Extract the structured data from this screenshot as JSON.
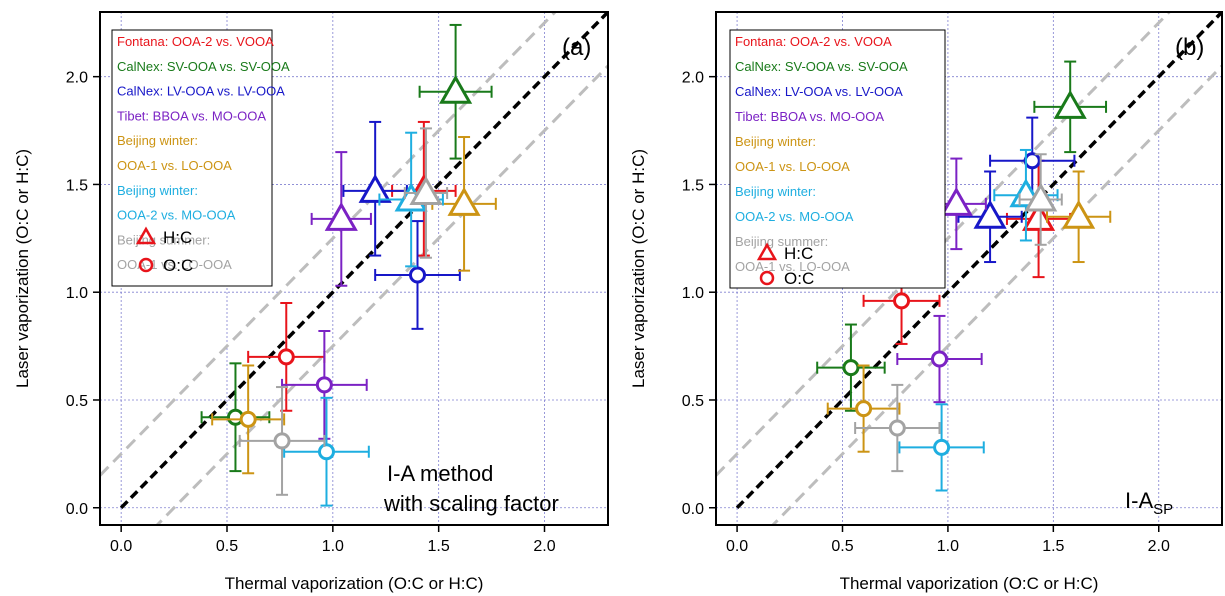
{
  "colors": {
    "Fontana": "#e8141b",
    "CalNex_SV": "#197a1a",
    "CalNex_LV": "#1717c8",
    "Tibet": "#7b22c4",
    "Beijing_winter_1": "#cc9414",
    "Beijing_winter_2": "#1eaee0",
    "Beijing_summer": "#a3a3a3",
    "one_to_one": "#000000",
    "guide": "#bdbdbd",
    "grid": "#8080d0"
  },
  "legend": {
    "entries": [
      {
        "key": "Fontana",
        "label": "Fontana: OOA-2 vs. VOOA"
      },
      {
        "key": "CalNex_SV",
        "label": "CalNex: SV-OOA vs. SV-OOA"
      },
      {
        "key": "CalNex_LV",
        "label": "CalNex: LV-OOA vs. LV-OOA"
      },
      {
        "key": "Tibet",
        "label": "Tibet: BBOA vs. MO-OOA"
      },
      {
        "key": "Beijing_winter_1",
        "label": "Beijing winter:"
      },
      {
        "key": "Beijing_winter_1",
        "label": "OOA-1 vs. LO-OOA"
      },
      {
        "key": "Beijing_winter_2",
        "label": "Beijing winter:"
      },
      {
        "key": "Beijing_winter_2",
        "label": "OOA-2 vs. MO-OOA"
      },
      {
        "key": "Beijing_summer",
        "label": "Beijing summer:"
      },
      {
        "key": "Beijing_summer",
        "label": "OOA-1 vs. LO-OOA"
      }
    ],
    "hc_label": "H:C",
    "oc_label": "O:C"
  },
  "chart_data": [
    {
      "type": "scatter",
      "panel_label": "(a)",
      "method_label_lines": [
        "I-A method",
        "with scaling factor"
      ],
      "xlabel": "Thermal vaporization (O:C or H:C)",
      "ylabel": "Laser vaporization (O:C or H:C)",
      "xlim": [
        -0.1,
        2.3
      ],
      "ylim": [
        -0.08,
        2.3
      ],
      "xticks": [
        "0.0",
        "0.5",
        "1.0",
        "1.5",
        "2.0"
      ],
      "yticks": [
        "0.0",
        "0.5",
        "1.0",
        "1.5",
        "2.0"
      ],
      "grid": true,
      "legend_position": "top-left",
      "reference_lines": [
        "1:1",
        "y = x + 0.25",
        "y = x - 0.25"
      ],
      "series": [
        {
          "key": "Fontana",
          "marker": "triangle",
          "x": 1.43,
          "y": 1.47,
          "xerr": [
            0.15,
            0.15
          ],
          "yerr": [
            0.3,
            0.32
          ]
        },
        {
          "key": "Fontana",
          "marker": "circle",
          "x": 0.78,
          "y": 0.7,
          "xerr": [
            0.18,
            0.18
          ],
          "yerr": [
            0.25,
            0.25
          ]
        },
        {
          "key": "CalNex_SV",
          "marker": "triangle",
          "x": 1.58,
          "y": 1.93,
          "xerr": [
            0.17,
            0.17
          ],
          "yerr": [
            0.31,
            0.31
          ]
        },
        {
          "key": "CalNex_SV",
          "marker": "circle",
          "x": 0.54,
          "y": 0.42,
          "xerr": [
            0.16,
            0.16
          ],
          "yerr": [
            0.25,
            0.25
          ]
        },
        {
          "key": "CalNex_LV",
          "marker": "triangle",
          "x": 1.2,
          "y": 1.47,
          "xerr": [
            0.15,
            0.15
          ],
          "yerr": [
            0.3,
            0.32
          ]
        },
        {
          "key": "CalNex_LV",
          "marker": "circle",
          "x": 1.4,
          "y": 1.08,
          "xerr": [
            0.2,
            0.2
          ],
          "yerr": [
            0.25,
            0.25
          ]
        },
        {
          "key": "Tibet",
          "marker": "triangle",
          "x": 1.04,
          "y": 1.34,
          "xerr": [
            0.14,
            0.14
          ],
          "yerr": [
            0.31,
            0.31
          ]
        },
        {
          "key": "Tibet",
          "marker": "circle",
          "x": 0.96,
          "y": 0.57,
          "xerr": [
            0.2,
            0.2
          ],
          "yerr": [
            0.25,
            0.25
          ]
        },
        {
          "key": "Beijing_winter_1",
          "marker": "triangle",
          "x": 1.62,
          "y": 1.41,
          "xerr": [
            0.15,
            0.15
          ],
          "yerr": [
            0.31,
            0.31
          ]
        },
        {
          "key": "Beijing_winter_1",
          "marker": "circle",
          "x": 0.6,
          "y": 0.41,
          "xerr": [
            0.17,
            0.17
          ],
          "yerr": [
            0.25,
            0.25
          ]
        },
        {
          "key": "Beijing_winter_2",
          "marker": "triangle",
          "x": 1.37,
          "y": 1.43,
          "xerr": [
            0.15,
            0.15
          ],
          "yerr": [
            0.31,
            0.31
          ]
        },
        {
          "key": "Beijing_winter_2",
          "marker": "circle",
          "x": 0.97,
          "y": 0.26,
          "xerr": [
            0.2,
            0.2
          ],
          "yerr": [
            0.25,
            0.25
          ]
        },
        {
          "key": "Beijing_summer",
          "marker": "triangle",
          "x": 1.44,
          "y": 1.46,
          "xerr": [
            0.1,
            0.1
          ],
          "yerr": [
            0.3,
            0.3
          ]
        },
        {
          "key": "Beijing_summer",
          "marker": "circle",
          "x": 0.76,
          "y": 0.31,
          "xerr": [
            0.2,
            0.2
          ],
          "yerr": [
            0.25,
            0.25
          ]
        }
      ]
    },
    {
      "type": "scatter",
      "panel_label": "(b)",
      "method_label_main": "I-A",
      "method_label_sub": "SP",
      "xlabel": "Thermal vaporization (O:C or H:C)",
      "ylabel": "Laser vaporization (O:C or H:C)",
      "xlim": [
        -0.1,
        2.3
      ],
      "ylim": [
        -0.08,
        2.3
      ],
      "xticks": [
        "0.0",
        "0.5",
        "1.0",
        "1.5",
        "2.0"
      ],
      "yticks": [
        "0.0",
        "0.5",
        "1.0",
        "1.5",
        "2.0"
      ],
      "grid": true,
      "legend_position": "top-left",
      "reference_lines": [
        "1:1",
        "y = x + 0.25",
        "y = x - 0.25"
      ],
      "series": [
        {
          "key": "Fontana",
          "marker": "triangle",
          "x": 1.43,
          "y": 1.34,
          "xerr": [
            0.15,
            0.15
          ],
          "yerr": [
            0.27,
            0.27
          ]
        },
        {
          "key": "Fontana",
          "marker": "circle",
          "x": 0.78,
          "y": 0.96,
          "xerr": [
            0.18,
            0.18
          ],
          "yerr": [
            0.2,
            0.2
          ]
        },
        {
          "key": "CalNex_SV",
          "marker": "triangle",
          "x": 1.58,
          "y": 1.86,
          "xerr": [
            0.17,
            0.17
          ],
          "yerr": [
            0.21,
            0.21
          ]
        },
        {
          "key": "CalNex_SV",
          "marker": "circle",
          "x": 0.54,
          "y": 0.65,
          "xerr": [
            0.16,
            0.16
          ],
          "yerr": [
            0.2,
            0.2
          ]
        },
        {
          "key": "CalNex_LV",
          "marker": "triangle",
          "x": 1.2,
          "y": 1.35,
          "xerr": [
            0.15,
            0.15
          ],
          "yerr": [
            0.21,
            0.21
          ]
        },
        {
          "key": "CalNex_LV",
          "marker": "circle",
          "x": 1.4,
          "y": 1.61,
          "xerr": [
            0.2,
            0.2
          ],
          "yerr": [
            0.2,
            0.2
          ]
        },
        {
          "key": "Tibet",
          "marker": "triangle",
          "x": 1.04,
          "y": 1.41,
          "xerr": [
            0.14,
            0.14
          ],
          "yerr": [
            0.21,
            0.21
          ]
        },
        {
          "key": "Tibet",
          "marker": "circle",
          "x": 0.96,
          "y": 0.69,
          "xerr": [
            0.2,
            0.2
          ],
          "yerr": [
            0.2,
            0.2
          ]
        },
        {
          "key": "Beijing_winter_1",
          "marker": "triangle",
          "x": 1.62,
          "y": 1.35,
          "xerr": [
            0.15,
            0.15
          ],
          "yerr": [
            0.21,
            0.21
          ]
        },
        {
          "key": "Beijing_winter_1",
          "marker": "circle",
          "x": 0.6,
          "y": 0.46,
          "xerr": [
            0.17,
            0.17
          ],
          "yerr": [
            0.2,
            0.2
          ]
        },
        {
          "key": "Beijing_winter_2",
          "marker": "triangle",
          "x": 1.37,
          "y": 1.45,
          "xerr": [
            0.15,
            0.15
          ],
          "yerr": [
            0.21,
            0.21
          ]
        },
        {
          "key": "Beijing_winter_2",
          "marker": "circle",
          "x": 0.97,
          "y": 0.28,
          "xerr": [
            0.2,
            0.2
          ],
          "yerr": [
            0.2,
            0.2
          ]
        },
        {
          "key": "Beijing_summer",
          "marker": "triangle",
          "x": 1.44,
          "y": 1.43,
          "xerr": [
            0.1,
            0.1
          ],
          "yerr": [
            0.21,
            0.21
          ]
        },
        {
          "key": "Beijing_summer",
          "marker": "circle",
          "x": 0.76,
          "y": 0.37,
          "xerr": [
            0.2,
            0.2
          ],
          "yerr": [
            0.2,
            0.2
          ]
        }
      ]
    }
  ]
}
